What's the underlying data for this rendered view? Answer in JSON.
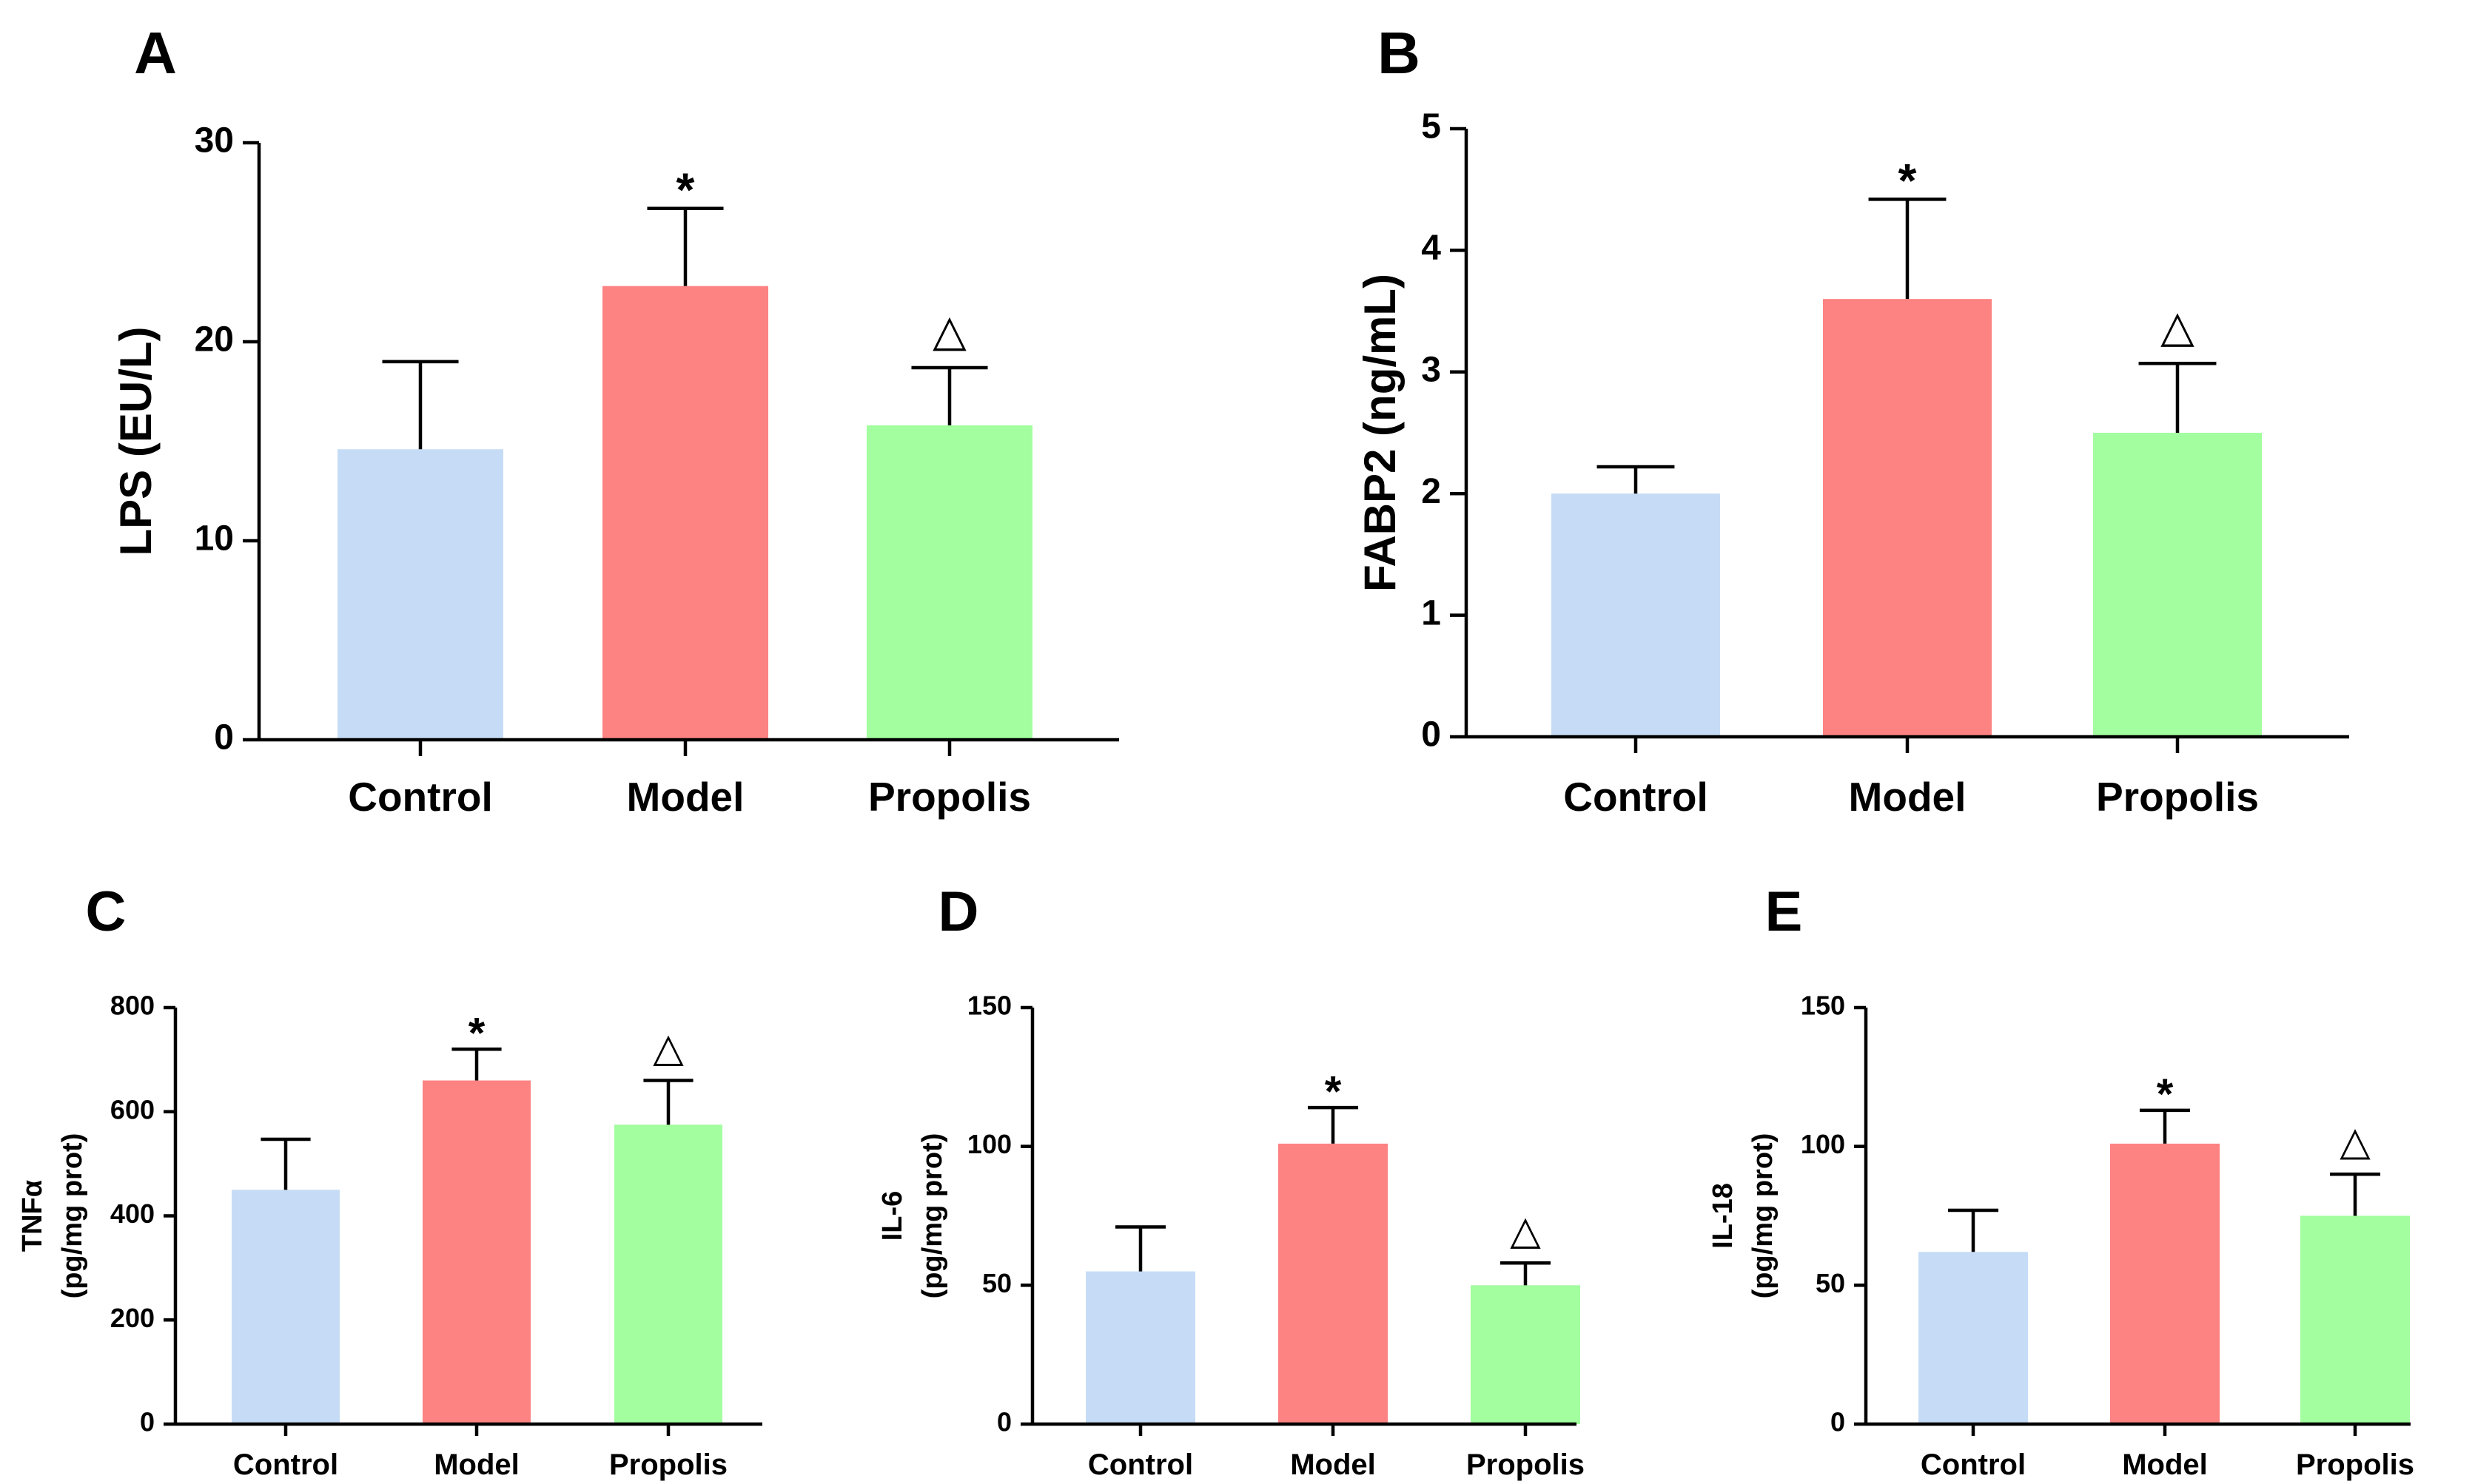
{
  "figure": {
    "panel_labels": [
      "A",
      "B",
      "C",
      "D",
      "E"
    ]
  },
  "colors": {
    "Control": "#c6dcf6",
    "Model": "#fd8282",
    "Propolis": "#a2fe9e"
  },
  "chart_data": [
    {
      "type": "bar",
      "panel": "A",
      "title": "",
      "xlabel": "",
      "ylabel": "LPS (EU/L)",
      "categories": [
        "Control",
        "Model",
        "Propolis"
      ],
      "values": [
        14.6,
        22.8,
        15.8
      ],
      "errors": [
        4.4,
        3.9,
        2.9
      ],
      "marks": [
        "",
        "*",
        "△"
      ],
      "ylim": [
        0,
        30
      ],
      "yticks": [
        0,
        10,
        20,
        30
      ],
      "ytick_labels": [
        "0",
        "10",
        "20",
        "30"
      ]
    },
    {
      "type": "bar",
      "panel": "B",
      "title": "",
      "xlabel": "",
      "ylabel": "FABP2 (ng/mL)",
      "categories": [
        "Control",
        "Model",
        "Propolis"
      ],
      "values": [
        2.0,
        3.6,
        2.5
      ],
      "errors": [
        0.22,
        0.82,
        0.57
      ],
      "marks": [
        "",
        "*",
        "△"
      ],
      "ylim": [
        0,
        5
      ],
      "yticks": [
        0,
        1,
        2,
        3,
        4,
        5
      ],
      "ytick_labels": [
        "0",
        "1",
        "2",
        "3",
        "4",
        "5"
      ]
    },
    {
      "type": "bar",
      "panel": "C",
      "title": "",
      "xlabel": "",
      "ylabel": "TNFα",
      "ylabel2": "(pg/mg prot)",
      "categories": [
        "Control",
        "Model",
        "Propolis"
      ],
      "values": [
        450,
        660,
        575
      ],
      "errors": [
        97,
        60,
        85
      ],
      "marks": [
        "",
        "*",
        "△"
      ],
      "ylim": [
        0,
        800
      ],
      "yticks": [
        0,
        200,
        400,
        600,
        800
      ],
      "ytick_labels": [
        "0",
        "200",
        "400",
        "600",
        "800"
      ]
    },
    {
      "type": "bar",
      "panel": "D",
      "title": "",
      "xlabel": "",
      "ylabel": "IL-6",
      "ylabel2": "(pg/mg prot)",
      "categories": [
        "Control",
        "Model",
        "Propolis"
      ],
      "values": [
        55,
        101,
        50
      ],
      "errors": [
        16,
        13,
        8
      ],
      "marks": [
        "",
        "*",
        "△"
      ],
      "ylim": [
        0,
        150
      ],
      "yticks": [
        0,
        50,
        100,
        150
      ],
      "ytick_labels": [
        "0",
        "50",
        "100",
        "150"
      ]
    },
    {
      "type": "bar",
      "panel": "E",
      "title": "",
      "xlabel": "",
      "ylabel": "IL-18",
      "ylabel2": "(pg/mg prot)",
      "categories": [
        "Control",
        "Model",
        "Propolis"
      ],
      "values": [
        62,
        101,
        75
      ],
      "errors": [
        15,
        12,
        15
      ],
      "marks": [
        "",
        "*",
        "△"
      ],
      "ylim": [
        0,
        150
      ],
      "yticks": [
        0,
        50,
        100,
        150
      ],
      "ytick_labels": [
        "0",
        "50",
        "100",
        "150"
      ]
    }
  ]
}
